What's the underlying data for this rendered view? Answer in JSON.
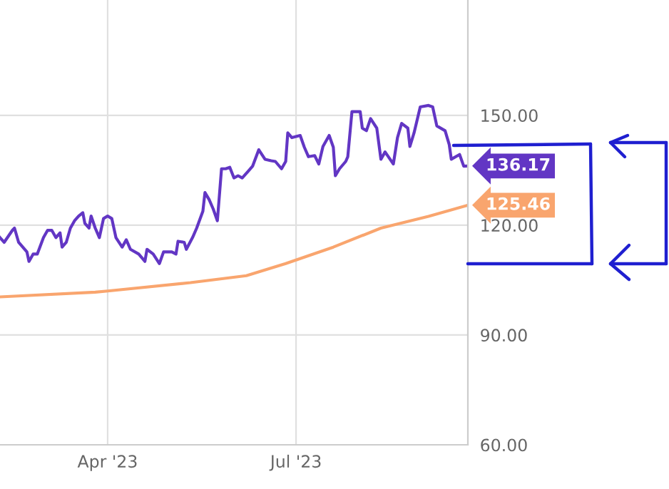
{
  "chart_data": {
    "type": "line",
    "xlim": [
      "2023-02-08",
      "2023-09-22"
    ],
    "ylim": [
      60,
      181.5
    ],
    "xticks": [
      {
        "value": "2023-04-01",
        "label": "Apr '23"
      },
      {
        "value": "2023-07-01",
        "label": "Jul '23"
      }
    ],
    "yticks": [
      {
        "value": 60,
        "label": "60.00"
      },
      {
        "value": 90,
        "label": "90.00"
      },
      {
        "value": 120,
        "label": "120.00"
      },
      {
        "value": 150,
        "label": "150.00"
      }
    ],
    "grid": true,
    "marker": "none",
    "line_style": "solid",
    "series": [
      {
        "color": "#6236c4",
        "x": [
          "2023-02-08",
          "2023-02-10",
          "2023-02-14",
          "2023-02-15",
          "2023-02-17",
          "2023-02-21",
          "2023-02-22",
          "2023-02-24",
          "2023-02-26",
          "2023-03-01",
          "2023-03-03",
          "2023-03-05",
          "2023-03-07",
          "2023-03-09",
          "2023-03-10",
          "2023-03-12",
          "2023-03-14",
          "2023-03-16",
          "2023-03-18",
          "2023-03-20",
          "2023-03-21",
          "2023-03-23",
          "2023-03-24",
          "2023-03-26",
          "2023-03-27",
          "2023-03-28",
          "2023-03-30",
          "2023-04-01",
          "2023-04-03",
          "2023-04-05",
          "2023-04-08",
          "2023-04-10",
          "2023-04-12",
          "2023-04-16",
          "2023-04-19",
          "2023-04-20",
          "2023-04-23",
          "2023-04-26",
          "2023-04-28",
          "2023-05-02",
          "2023-05-04",
          "2023-05-05",
          "2023-05-08",
          "2023-05-09",
          "2023-05-12",
          "2023-05-14",
          "2023-05-17",
          "2023-05-18",
          "2023-05-20",
          "2023-05-22",
          "2023-05-24",
          "2023-05-26",
          "2023-05-28",
          "2023-05-30",
          "2023-06-01",
          "2023-06-03",
          "2023-06-05",
          "2023-06-08",
          "2023-06-10",
          "2023-06-13",
          "2023-06-16",
          "2023-06-19",
          "2023-06-21",
          "2023-06-24",
          "2023-06-26",
          "2023-06-27",
          "2023-06-29",
          "2023-07-03",
          "2023-07-05",
          "2023-07-07",
          "2023-07-10",
          "2023-07-12",
          "2023-07-14",
          "2023-07-17",
          "2023-07-19",
          "2023-07-20",
          "2023-07-22",
          "2023-07-25",
          "2023-07-26",
          "2023-07-28",
          "2023-08-01",
          "2023-08-02",
          "2023-08-04",
          "2023-08-06",
          "2023-08-09",
          "2023-08-11",
          "2023-08-13",
          "2023-08-17",
          "2023-08-19",
          "2023-08-21",
          "2023-08-24",
          "2023-08-25",
          "2023-08-27",
          "2023-08-30",
          "2023-09-03",
          "2023-09-05",
          "2023-09-07",
          "2023-09-11",
          "2023-09-13",
          "2023-09-14",
          "2023-09-18",
          "2023-09-20",
          "2023-09-22"
        ],
        "values": [
          116.6,
          115.3,
          118.6,
          119.2,
          115.3,
          112.7,
          110.1,
          112.1,
          112.1,
          116.6,
          118.6,
          118.6,
          116.6,
          117.9,
          114.0,
          115.3,
          119.2,
          121.2,
          122.5,
          123.4,
          120.5,
          119.2,
          122.5,
          119.2,
          117.9,
          116.6,
          121.8,
          122.5,
          121.8,
          116.6,
          114.0,
          116.0,
          113.4,
          112.1,
          110.1,
          113.4,
          112.1,
          109.5,
          112.7,
          112.7,
          112.1,
          115.6,
          115.3,
          113.4,
          116.6,
          119.2,
          123.8,
          128.9,
          127.0,
          124.4,
          121.2,
          135.4,
          135.4,
          135.8,
          132.9,
          133.5,
          132.9,
          134.8,
          136.1,
          140.6,
          138.0,
          137.6,
          137.4,
          135.4,
          137.4,
          145.2,
          143.9,
          144.5,
          141.3,
          138.7,
          139.0,
          136.7,
          141.5,
          144.5,
          141.3,
          133.5,
          135.4,
          137.4,
          138.7,
          151.0,
          151.0,
          146.5,
          145.8,
          149.1,
          146.5,
          138.0,
          140.0,
          136.7,
          143.9,
          147.8,
          146.5,
          141.5,
          145.2,
          152.3,
          152.7,
          152.3,
          147.1,
          145.8,
          142.0,
          138.0,
          139.3,
          136.1,
          136.17
        ],
        "value_labels": [
          null,
          null,
          null,
          null,
          null,
          null,
          null,
          null,
          null,
          null,
          null,
          null,
          null,
          null,
          null,
          null,
          null,
          null,
          null,
          null,
          null,
          null,
          null,
          null,
          null,
          null,
          null,
          null,
          null,
          null,
          null,
          null,
          null,
          null,
          null,
          null,
          null,
          null,
          null,
          null,
          null,
          null,
          null,
          null,
          null,
          null,
          null,
          null,
          null,
          null,
          null,
          null,
          null,
          null,
          null,
          null,
          null,
          null,
          null,
          null,
          null,
          null,
          null,
          null,
          null,
          null,
          null,
          null,
          null,
          null,
          null,
          null,
          null,
          null,
          null,
          null,
          null,
          null,
          null,
          null,
          null,
          null,
          null,
          null,
          null,
          null,
          null,
          null,
          null,
          null,
          null,
          null,
          null,
          null,
          null,
          null,
          null,
          null,
          null,
          null,
          null,
          null,
          "136.17"
        ]
      },
      {
        "color": "#f9a56e",
        "x": [
          "2023-02-08",
          "2023-03-26",
          "2023-04-01",
          "2023-05-11",
          "2023-06-07",
          "2023-06-26",
          "2023-07-19",
          "2023-08-11",
          "2023-09-03",
          "2023-09-22"
        ],
        "values": [
          100.4,
          101.7,
          102.0,
          104.3,
          106.2,
          109.5,
          114.0,
          119.2,
          122.4,
          125.46
        ],
        "value_labels": [
          null,
          null,
          null,
          null,
          null,
          null,
          null,
          null,
          null,
          "125.46"
        ]
      }
    ]
  }
}
